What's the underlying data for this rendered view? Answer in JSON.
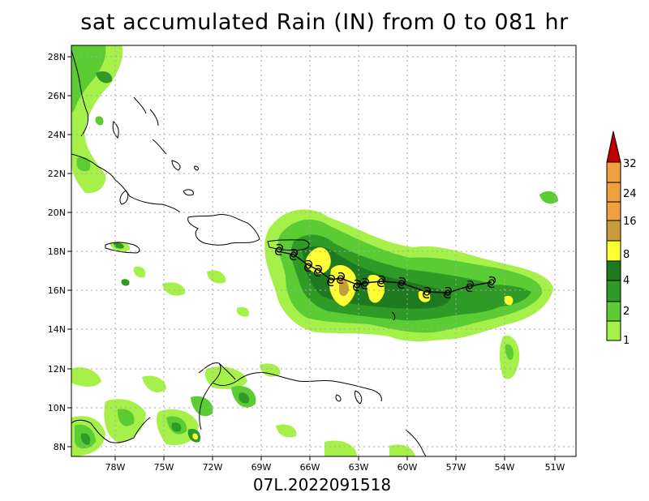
{
  "title": "sat accumulated Rain (IN) from 0 to 081 hr",
  "footer": "07L.2022091518",
  "map": {
    "lon_labels": [
      "78W",
      "75W",
      "72W",
      "69W",
      "66W",
      "63W",
      "60W",
      "57W",
      "54W",
      "51W"
    ],
    "lat_labels": [
      "28N",
      "26N",
      "24N",
      "22N",
      "20N",
      "18N",
      "16N",
      "14N",
      "12N",
      "10N",
      "8N"
    ],
    "storm_symbol": "hurricane-symbol"
  },
  "colorbar": {
    "levels": [
      "1",
      "2",
      "4",
      "8",
      "16",
      "24",
      "32"
    ],
    "colors": [
      "#a6f04a",
      "#5ccc34",
      "#2f9b26",
      "#1e7a1e",
      "#ffff33",
      "#c89b3c",
      "#f0a040",
      "#c00000"
    ]
  }
}
